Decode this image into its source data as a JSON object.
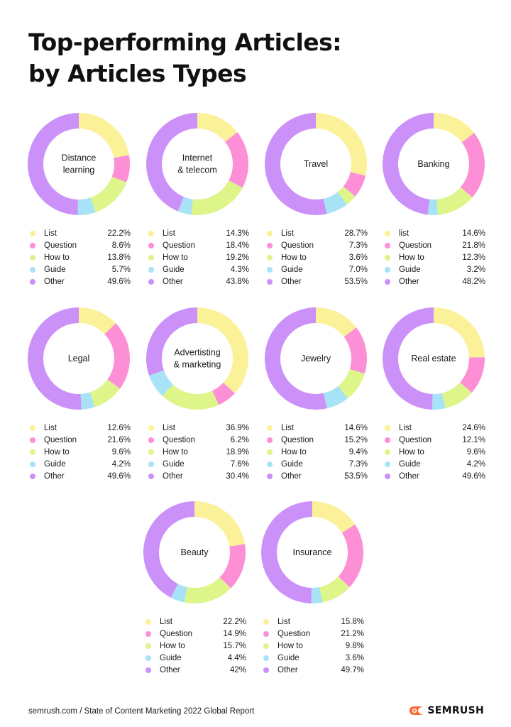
{
  "title": {
    "line1": "Top-performing Articles:",
    "line2": "by Articles Types"
  },
  "colors": {
    "list": "#fbf198",
    "question": "#fd8fd7",
    "how_to": "#def58a",
    "guide": "#a8e2f7",
    "other": "#cb91f8"
  },
  "chart_data": [
    {
      "type": "pie",
      "subtype": "donut",
      "title": [
        "Distance",
        "learning"
      ],
      "legend": [
        {
          "label": "List",
          "value_text": "22.2%",
          "value": 22.2,
          "color": "#fbf198"
        },
        {
          "label": "Question",
          "value_text": "8.6%",
          "value": 8.6,
          "color": "#fd8fd7"
        },
        {
          "label": "How to",
          "value_text": "13.8%",
          "value": 13.8,
          "color": "#def58a"
        },
        {
          "label": "Guide",
          "value_text": "5.7%",
          "value": 5.7,
          "color": "#a8e2f7"
        },
        {
          "label": "Other",
          "value_text": "49.6%",
          "value": 49.6,
          "color": "#cb91f8"
        }
      ]
    },
    {
      "type": "pie",
      "subtype": "donut",
      "title": [
        "Internet",
        "& telecom"
      ],
      "legend": [
        {
          "label": "List",
          "value_text": "14.3%",
          "value": 14.3,
          "color": "#fbf198"
        },
        {
          "label": "Question",
          "value_text": "18.4%",
          "value": 18.4,
          "color": "#fd8fd7"
        },
        {
          "label": "How to",
          "value_text": "19.2%",
          "value": 19.2,
          "color": "#def58a"
        },
        {
          "label": "Guide",
          "value_text": "4.3%",
          "value": 4.3,
          "color": "#a8e2f7"
        },
        {
          "label": "Other",
          "value_text": "43.8%",
          "value": 43.8,
          "color": "#cb91f8"
        }
      ]
    },
    {
      "type": "pie",
      "subtype": "donut",
      "title": [
        "Travel"
      ],
      "legend": [
        {
          "label": "List",
          "value_text": "28.7%",
          "value": 28.7,
          "color": "#fbf198"
        },
        {
          "label": "Question",
          "value_text": "7.3%",
          "value": 7.3,
          "color": "#fd8fd7"
        },
        {
          "label": "How to",
          "value_text": "3.6%",
          "value": 3.6,
          "color": "#def58a"
        },
        {
          "label": "Guide",
          "value_text": "7.0%",
          "value": 7.0,
          "color": "#a8e2f7"
        },
        {
          "label": "Other",
          "value_text": "53.5%",
          "value": 53.5,
          "color": "#cb91f8"
        }
      ]
    },
    {
      "type": "pie",
      "subtype": "donut",
      "title": [
        "Banking"
      ],
      "legend": [
        {
          "label": "list",
          "value_text": "14.6%",
          "value": 14.6,
          "color": "#fbf198"
        },
        {
          "label": "Question",
          "value_text": "21.8%",
          "value": 21.8,
          "color": "#fd8fd7"
        },
        {
          "label": "How to",
          "value_text": "12.3%",
          "value": 12.3,
          "color": "#def58a"
        },
        {
          "label": "Guide",
          "value_text": "3.2%",
          "value": 3.2,
          "color": "#a8e2f7"
        },
        {
          "label": "Other",
          "value_text": "48.2%",
          "value": 48.2,
          "color": "#cb91f8"
        }
      ]
    },
    {
      "type": "pie",
      "subtype": "donut",
      "title": [
        "Legal"
      ],
      "legend": [
        {
          "label": "List",
          "value_text": "12.6%",
          "value": 12.6,
          "color": "#fbf198"
        },
        {
          "label": "Question",
          "value_text": "21.6%",
          "value": 21.6,
          "color": "#fd8fd7"
        },
        {
          "label": "How to",
          "value_text": "9.6%",
          "value": 9.6,
          "color": "#def58a"
        },
        {
          "label": "Guide",
          "value_text": "4.2%",
          "value": 4.2,
          "color": "#a8e2f7"
        },
        {
          "label": "Other",
          "value_text": "49.6%",
          "value": 49.6,
          "color": "#cb91f8"
        }
      ]
    },
    {
      "type": "pie",
      "subtype": "donut",
      "title": [
        "Advertisting",
        "& marketing"
      ],
      "legend": [
        {
          "label": "List",
          "value_text": "36.9%",
          "value": 36.9,
          "color": "#fbf198"
        },
        {
          "label": "Question",
          "value_text": "6.2%",
          "value": 6.2,
          "color": "#fd8fd7"
        },
        {
          "label": "How to",
          "value_text": "18.9%",
          "value": 18.9,
          "color": "#def58a"
        },
        {
          "label": "Guide",
          "value_text": "7.6%",
          "value": 7.6,
          "color": "#a8e2f7"
        },
        {
          "label": "Other",
          "value_text": "30.4%",
          "value": 30.4,
          "color": "#cb91f8"
        }
      ]
    },
    {
      "type": "pie",
      "subtype": "donut",
      "title": [
        "Jewelry"
      ],
      "legend": [
        {
          "label": "List",
          "value_text": "14.6%",
          "value": 14.6,
          "color": "#fbf198"
        },
        {
          "label": "Question",
          "value_text": "15.2%",
          "value": 15.2,
          "color": "#fd8fd7"
        },
        {
          "label": "How to",
          "value_text": "9.4%",
          "value": 9.4,
          "color": "#def58a"
        },
        {
          "label": "Guide",
          "value_text": "7.3%",
          "value": 7.3,
          "color": "#a8e2f7"
        },
        {
          "label": "Other",
          "value_text": "53.5%",
          "value": 53.5,
          "color": "#cb91f8"
        }
      ]
    },
    {
      "type": "pie",
      "subtype": "donut",
      "title": [
        "Real estate"
      ],
      "legend": [
        {
          "label": "List",
          "value_text": "24.6%",
          "value": 24.6,
          "color": "#fbf198"
        },
        {
          "label": "Question",
          "value_text": "12.1%",
          "value": 12.1,
          "color": "#fd8fd7"
        },
        {
          "label": "How to",
          "value_text": "9.6%",
          "value": 9.6,
          "color": "#def58a"
        },
        {
          "label": "Guide",
          "value_text": "4.2%",
          "value": 4.2,
          "color": "#a8e2f7"
        },
        {
          "label": "Other",
          "value_text": "49.6%",
          "value": 49.6,
          "color": "#cb91f8"
        }
      ]
    },
    {
      "type": "pie",
      "subtype": "donut",
      "title": [
        "Beauty"
      ],
      "legend": [
        {
          "label": "List",
          "value_text": "22.2%",
          "value": 22.2,
          "color": "#fbf198"
        },
        {
          "label": "Question",
          "value_text": "14.9%",
          "value": 14.9,
          "color": "#fd8fd7"
        },
        {
          "label": "How to",
          "value_text": "15.7%",
          "value": 15.7,
          "color": "#def58a"
        },
        {
          "label": "Guide",
          "value_text": "4.4%",
          "value": 4.4,
          "color": "#a8e2f7"
        },
        {
          "label": "Other",
          "value_text": "42%",
          "value": 42,
          "color": "#cb91f8"
        }
      ]
    },
    {
      "type": "pie",
      "subtype": "donut",
      "title": [
        "Insurance"
      ],
      "legend": [
        {
          "label": "List",
          "value_text": "15.8%",
          "value": 15.8,
          "color": "#fbf198"
        },
        {
          "label": "Question",
          "value_text": "21.2%",
          "value": 21.2,
          "color": "#fd8fd7"
        },
        {
          "label": "How to",
          "value_text": "9.8%",
          "value": 9.8,
          "color": "#def58a"
        },
        {
          "label": "Guide",
          "value_text": "3.6%",
          "value": 3.6,
          "color": "#a8e2f7"
        },
        {
          "label": "Other",
          "value_text": "49.7%",
          "value": 49.7,
          "color": "#cb91f8"
        }
      ]
    }
  ],
  "footer": {
    "source": "semrush.com / State of Content Marketing 2022 Global Report",
    "brand": "SEMRUSH",
    "brand_icon": "semrush-fireball-icon",
    "brand_color": "#ff642d"
  }
}
